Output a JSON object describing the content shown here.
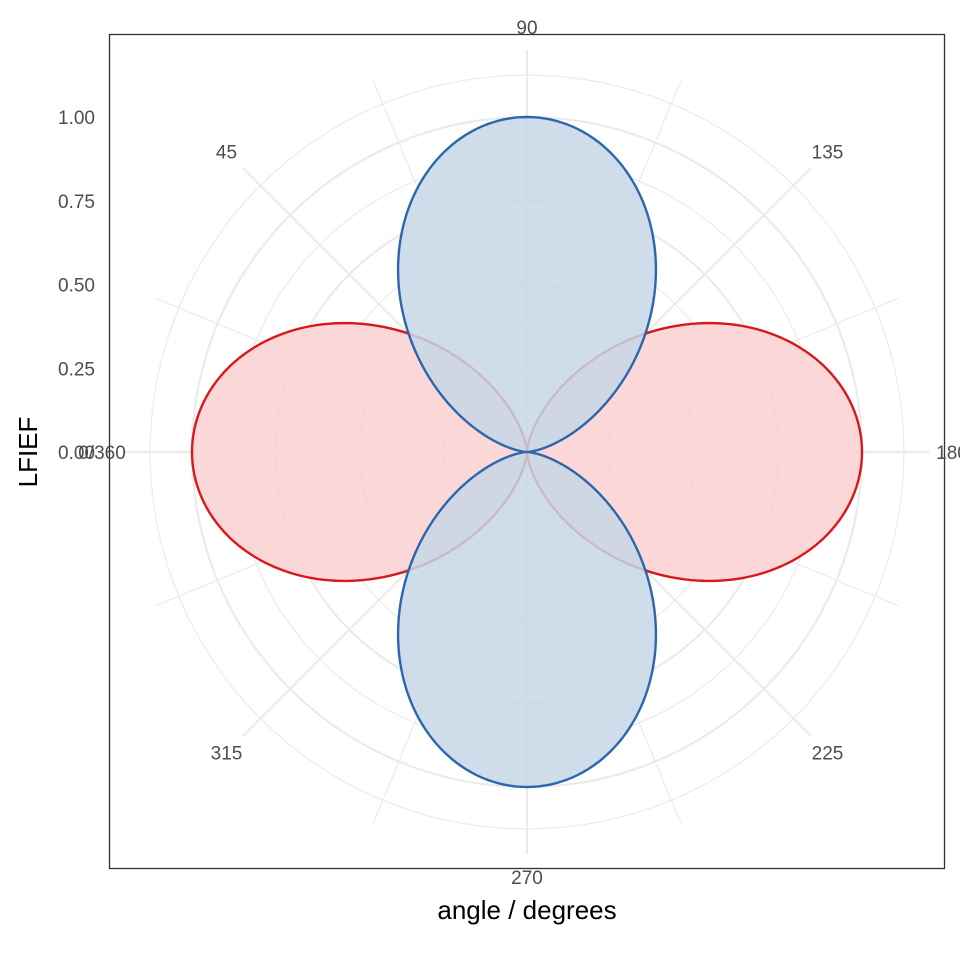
{
  "chart_data": {
    "type": "polar-line",
    "xlabel": "angle / degrees",
    "ylabel": "LFIEF",
    "angle_ticks": [
      {
        "angle": 0,
        "label": "0/360"
      },
      {
        "angle": 45,
        "label": "45"
      },
      {
        "angle": 90,
        "label": "90"
      },
      {
        "angle": 135,
        "label": "135"
      },
      {
        "angle": 180,
        "label": "180"
      },
      {
        "angle": 225,
        "label": "225"
      },
      {
        "angle": 270,
        "label": "270"
      },
      {
        "angle": 315,
        "label": "315"
      }
    ],
    "radial_ticks": [
      {
        "value": 0.0,
        "label": "0.00"
      },
      {
        "value": 0.25,
        "label": "0.25"
      },
      {
        "value": 0.5,
        "label": "0.50"
      },
      {
        "value": 0.75,
        "label": "0.75"
      },
      {
        "value": 1.0,
        "label": "1.00"
      }
    ],
    "rlim": [
      0,
      1.2
    ],
    "angle_direction": "clockwise, 0 at left, 90 at top",
    "grid": true,
    "series": [
      {
        "function": "cos^2(angle)",
        "color": "#d7191c",
        "fill": "#fcd0d0",
        "samples": [
          [
            0,
            1.0
          ],
          [
            30,
            0.75
          ],
          [
            45,
            0.5
          ],
          [
            60,
            0.25
          ],
          [
            90,
            0.0
          ],
          [
            120,
            0.25
          ],
          [
            135,
            0.5
          ],
          [
            150,
            0.75
          ],
          [
            180,
            1.0
          ],
          [
            210,
            0.75
          ],
          [
            225,
            0.5
          ],
          [
            240,
            0.25
          ],
          [
            270,
            0.0
          ],
          [
            300,
            0.25
          ],
          [
            315,
            0.5
          ],
          [
            330,
            0.75
          ],
          [
            360,
            1.0
          ]
        ]
      },
      {
        "function": "sin^2(angle)",
        "color": "#2b67ad",
        "fill": "#c7d7e8",
        "samples": [
          [
            0,
            0.0
          ],
          [
            30,
            0.25
          ],
          [
            45,
            0.5
          ],
          [
            60,
            0.75
          ],
          [
            90,
            1.0
          ],
          [
            120,
            0.75
          ],
          [
            135,
            0.5
          ],
          [
            150,
            0.25
          ],
          [
            180,
            0.0
          ],
          [
            210,
            0.25
          ],
          [
            225,
            0.5
          ],
          [
            240,
            0.75
          ],
          [
            270,
            1.0
          ],
          [
            300,
            0.75
          ],
          [
            315,
            0.5
          ],
          [
            330,
            0.25
          ],
          [
            360,
            0.0
          ]
        ]
      }
    ]
  }
}
